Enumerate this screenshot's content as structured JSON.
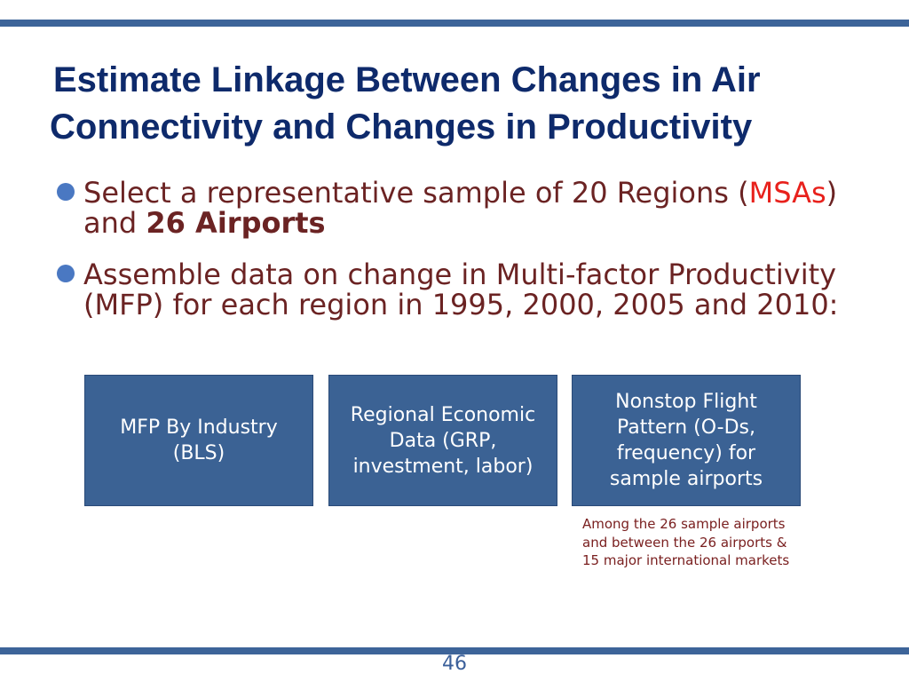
{
  "slide": {
    "title_line1": "Estimate Linkage Between Changes in Air",
    "title_line2": "Connectivity and Changes in Productivity",
    "bullet1": {
      "text_a": "Select a  representative sample of 20 Regions (",
      "msas": "MSAs",
      "text_b": ") and ",
      "bold": "26 Airports"
    },
    "bullet2": "Assemble data on change in Multi-factor Productivity (MFP) for each region in 1995, 2000, 2005 and 2010:",
    "boxes": [
      "MFP By Industry (BLS)",
      "Regional Economic Data (GRP, investment, labor)",
      "Nonstop Flight Pattern (O-Ds, frequency) for sample airports"
    ],
    "note": "Among the 26 sample airports and between the 26 airports & 15 major international markets",
    "page_number": "46"
  },
  "colors": {
    "title": "#0e2a6b",
    "body_text": "#6b2323",
    "highlight": "#e8211c",
    "box_fill": "#3b6294",
    "accent_bar": "#3d6499"
  }
}
